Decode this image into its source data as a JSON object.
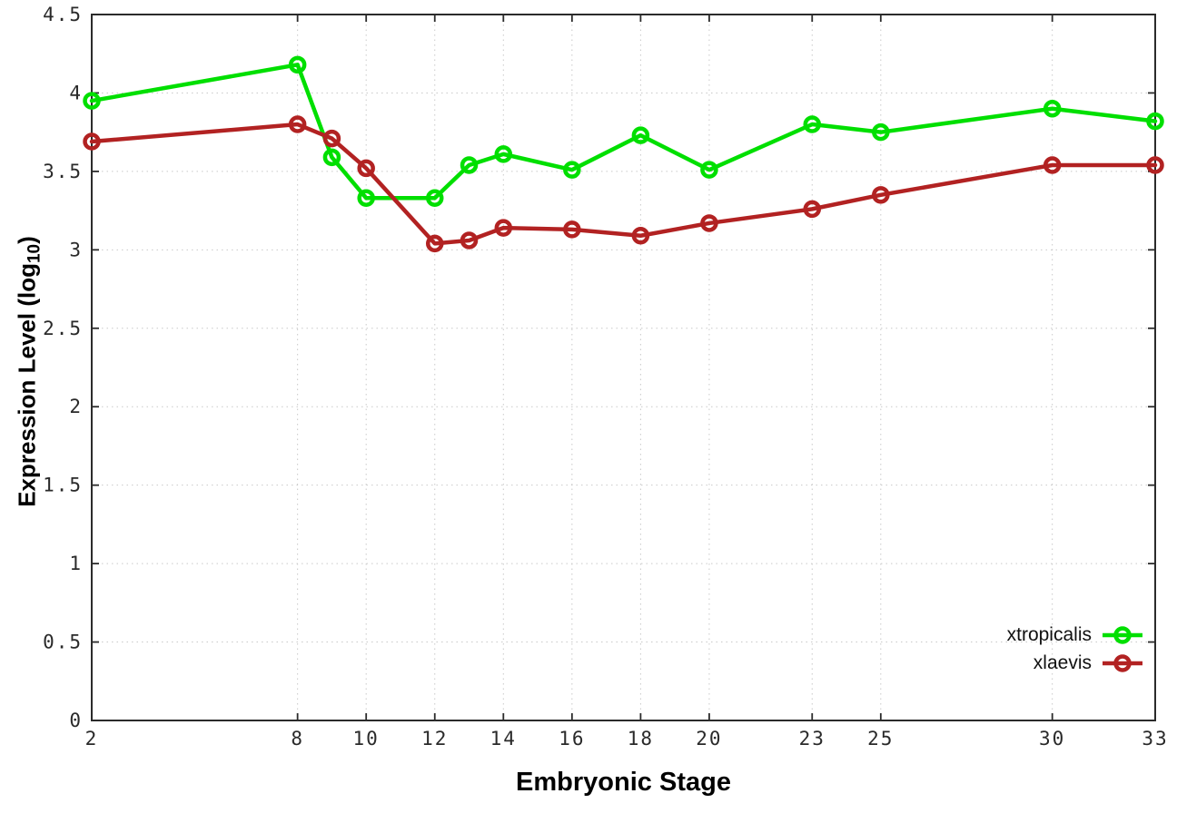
{
  "chart_data": {
    "type": "line",
    "title": "",
    "xlabel": "Embryonic Stage",
    "ylabel": "Expression Level (log10)",
    "ylabel_parts": {
      "main": "Expression Level (log",
      "sub": "10",
      "close": ")"
    },
    "xlim": [
      2,
      33
    ],
    "ylim": [
      0,
      4.5
    ],
    "grid": true,
    "legend_position": "inside-bottom-right",
    "x_ticks": [
      {
        "value": 2,
        "label": "2"
      },
      {
        "value": 8,
        "label": "8"
      },
      {
        "value": 10,
        "label": "10"
      },
      {
        "value": 12,
        "label": "12"
      },
      {
        "value": 14,
        "label": "14"
      },
      {
        "value": 16,
        "label": "16"
      },
      {
        "value": 18,
        "label": "18"
      },
      {
        "value": 20,
        "label": "20"
      },
      {
        "value": 23,
        "label": "23"
      },
      {
        "value": 25,
        "label": "25"
      },
      {
        "value": 30,
        "label": "30"
      },
      {
        "value": 33,
        "label": "33"
      }
    ],
    "y_ticks": [
      {
        "value": 0,
        "label": "0"
      },
      {
        "value": 0.5,
        "label": "0.5"
      },
      {
        "value": 1,
        "label": "1"
      },
      {
        "value": 1.5,
        "label": "1.5"
      },
      {
        "value": 2,
        "label": "2"
      },
      {
        "value": 2.5,
        "label": "2.5"
      },
      {
        "value": 3,
        "label": "3"
      },
      {
        "value": 3.5,
        "label": "3.5"
      },
      {
        "value": 4,
        "label": "4"
      },
      {
        "value": 4.5,
        "label": "4.5"
      }
    ],
    "x": [
      2,
      8,
      9,
      10,
      12,
      13,
      14,
      16,
      18,
      20,
      23,
      25,
      30,
      33
    ],
    "series": [
      {
        "name": "xtropicalis",
        "color": "#00df00",
        "values": [
          3.95,
          4.18,
          3.59,
          3.33,
          3.33,
          3.54,
          3.61,
          3.51,
          3.73,
          3.51,
          3.8,
          3.75,
          3.9,
          3.82
        ]
      },
      {
        "name": "xlaevis",
        "color": "#b22222",
        "values": [
          3.69,
          3.8,
          3.71,
          3.52,
          3.04,
          3.06,
          3.14,
          3.13,
          3.09,
          3.17,
          3.26,
          3.35,
          3.54,
          3.54
        ]
      }
    ],
    "style": {
      "border_color": "#2b2b2b",
      "grid_color": "#c9c9c9",
      "tick_label_color": "#2a2a2a",
      "line_width": 4.5,
      "marker_radius": 7.5
    }
  }
}
